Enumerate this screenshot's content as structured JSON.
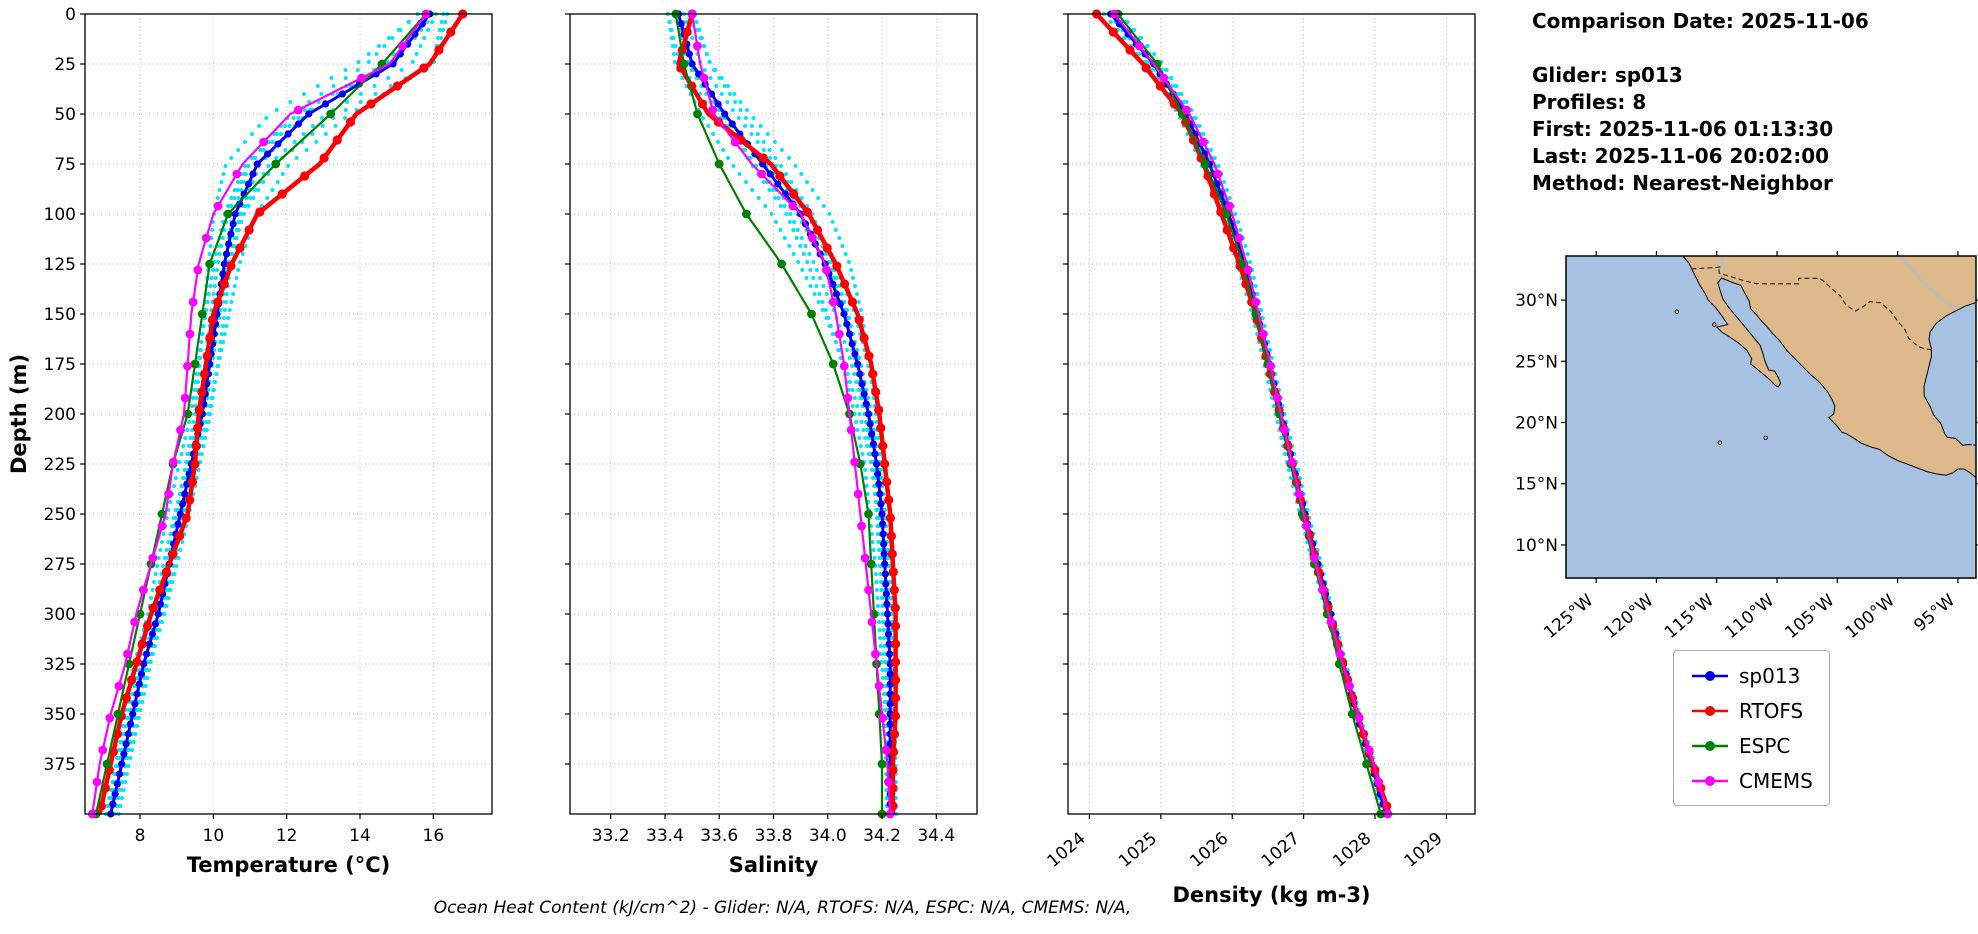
{
  "info_panel": {
    "comparison_date": "Comparison Date: 2025-11-06",
    "glider": "Glider: sp013",
    "profiles": "Profiles: 8",
    "first": "First: 2025-11-06 01:13:30",
    "last": "Last: 2025-11-06 20:02:00",
    "method": "Method: Nearest-Neighbor"
  },
  "footer_text": "Ocean Heat Content (kJ/cm^2) - Glider: N/A,  RTOFS: N/A,  ESPC: N/A,  CMEMS: N/A,",
  "legend": [
    {
      "label": "sp013"
    },
    {
      "label": "RTOFS"
    },
    {
      "label": "ESPC"
    },
    {
      "label": "CMEMS"
    }
  ],
  "colors": {
    "sp013": "#0000ee",
    "RTOFS": "#ff0000",
    "ESPC": "#008000",
    "CMEMS": "#ff00ff",
    "glider_scatter": "#00e5ff",
    "land": "#ddb88a",
    "ocean": "#a6c1e1",
    "river": "#9cc3e6",
    "grid": "#b9b9b9"
  },
  "chart_data": [
    {
      "type": "line",
      "name": "temperature",
      "xlabel": "Temperature (°C)",
      "ylabel": "Depth (m)",
      "xlim": [
        6.5,
        17.6
      ],
      "xticks": [
        8,
        10,
        12,
        14,
        16
      ],
      "xtick_labels": [
        "8",
        "10",
        "12",
        "14",
        "16"
      ],
      "rotate_xticks": false,
      "ylim": [
        0,
        400
      ],
      "yticks": [
        0,
        25,
        50,
        75,
        100,
        125,
        150,
        175,
        200,
        225,
        250,
        275,
        300,
        325,
        350,
        375
      ],
      "depths": [
        0,
        25,
        50,
        75,
        100,
        125,
        150,
        175,
        200,
        225,
        250,
        275,
        300,
        325,
        350,
        375,
        400
      ],
      "series": [
        {
          "name": "sp013",
          "values": [
            15.9,
            14.9,
            12.6,
            11.2,
            10.6,
            10.3,
            10.1,
            9.9,
            9.7,
            9.4,
            9.1,
            8.8,
            8.5,
            8.1,
            7.8,
            7.5,
            7.2
          ]
        },
        {
          "name": "RTOFS",
          "values": [
            16.8,
            15.9,
            13.9,
            12.9,
            11.2,
            10.5,
            10.0,
            9.8,
            9.6,
            9.5,
            9.3,
            8.8,
            8.3,
            7.9,
            7.5,
            7.2,
            6.9
          ]
        },
        {
          "name": "ESPC",
          "values": [
            15.8,
            14.6,
            13.2,
            11.7,
            10.4,
            9.9,
            9.7,
            9.5,
            9.3,
            8.9,
            8.6,
            8.3,
            8.0,
            7.7,
            7.4,
            7.1,
            6.8
          ]
        },
        {
          "name": "CMEMS",
          "values": [
            15.8,
            14.8,
            12.1,
            10.8,
            10.0,
            9.6,
            9.4,
            9.3,
            9.2,
            8.9,
            8.7,
            8.3,
            7.9,
            7.6,
            7.2,
            6.9,
            6.7
          ]
        }
      ],
      "glider_scatter": {
        "profiles": 8,
        "spread": [
          0.5,
          1.3,
          1.2,
          0.9,
          0.6,
          0.45,
          0.4,
          0.35,
          0.3,
          0.3,
          0.3,
          0.28,
          0.25,
          0.25,
          0.22,
          0.2,
          0.2
        ]
      }
    },
    {
      "type": "line",
      "name": "salinity",
      "xlabel": "Salinity",
      "ylabel": "",
      "xlim": [
        33.05,
        34.55
      ],
      "xticks": [
        33.2,
        33.4,
        33.6,
        33.8,
        34.0,
        34.2,
        34.4
      ],
      "xtick_labels": [
        "33.2",
        "33.4",
        "33.6",
        "33.8",
        "34.0",
        "34.2",
        "34.4"
      ],
      "rotate_xticks": false,
      "ylim": [
        0,
        400
      ],
      "yticks": [
        0,
        25,
        50,
        75,
        100,
        125,
        150,
        175,
        200,
        225,
        250,
        275,
        300,
        325,
        350,
        375
      ],
      "depths": [
        0,
        25,
        50,
        75,
        100,
        125,
        150,
        175,
        200,
        225,
        250,
        275,
        300,
        325,
        350,
        375,
        400
      ],
      "series": [
        {
          "name": "sp013",
          "values": [
            33.45,
            33.5,
            33.62,
            33.76,
            33.9,
            33.99,
            34.06,
            34.11,
            34.15,
            34.18,
            34.2,
            34.21,
            34.22,
            34.23,
            34.23,
            34.23,
            34.23
          ]
        },
        {
          "name": "RTOFS",
          "values": [
            33.5,
            33.45,
            33.56,
            33.79,
            33.93,
            34.03,
            34.11,
            34.16,
            34.19,
            34.21,
            34.23,
            34.24,
            34.25,
            34.25,
            34.25,
            34.24,
            34.24
          ]
        },
        {
          "name": "ESPC",
          "values": [
            33.44,
            33.47,
            33.52,
            33.6,
            33.7,
            33.83,
            33.94,
            34.02,
            34.08,
            34.12,
            34.15,
            34.16,
            34.17,
            34.18,
            34.19,
            34.2,
            34.2
          ]
        },
        {
          "name": "CMEMS",
          "values": [
            33.5,
            33.53,
            33.58,
            33.72,
            33.9,
            33.99,
            34.03,
            34.06,
            34.08,
            34.1,
            34.12,
            34.14,
            34.16,
            34.18,
            34.2,
            34.22,
            34.23
          ]
        }
      ],
      "glider_scatter": {
        "profiles": 8,
        "spread": [
          0.06,
          0.08,
          0.1,
          0.12,
          0.11,
          0.1,
          0.08,
          0.06,
          0.05,
          0.04,
          0.04,
          0.03,
          0.03,
          0.03,
          0.02,
          0.02,
          0.02
        ]
      }
    },
    {
      "type": "line",
      "name": "density",
      "xlabel": "Density (kg m-3)",
      "ylabel": "",
      "xlim": [
        1023.7,
        1029.4
      ],
      "xticks": [
        1024,
        1025,
        1026,
        1027,
        1028,
        1029
      ],
      "xtick_labels": [
        "1024",
        "1025",
        "1026",
        "1027",
        "1028",
        "1029"
      ],
      "rotate_xticks": true,
      "ylim": [
        0,
        400
      ],
      "yticks": [
        0,
        25,
        50,
        75,
        100,
        125,
        150,
        175,
        200,
        225,
        250,
        275,
        300,
        325,
        350,
        375
      ],
      "depths": [
        0,
        25,
        50,
        75,
        100,
        125,
        150,
        175,
        200,
        225,
        250,
        275,
        300,
        325,
        350,
        375,
        400
      ],
      "series": [
        {
          "name": "sp013",
          "values": [
            1024.3,
            1024.9,
            1025.35,
            1025.68,
            1025.95,
            1026.17,
            1026.35,
            1026.52,
            1026.68,
            1026.85,
            1027.02,
            1027.2,
            1027.38,
            1027.56,
            1027.74,
            1027.95,
            1028.15
          ]
        },
        {
          "name": "RTOFS",
          "values": [
            1024.1,
            1024.75,
            1025.3,
            1025.6,
            1025.85,
            1026.1,
            1026.33,
            1026.5,
            1026.67,
            1026.84,
            1027.0,
            1027.18,
            1027.36,
            1027.55,
            1027.75,
            1027.97,
            1028.2
          ]
        },
        {
          "name": "ESPC",
          "values": [
            1024.4,
            1024.95,
            1025.3,
            1025.62,
            1025.92,
            1026.15,
            1026.33,
            1026.5,
            1026.66,
            1026.82,
            1026.98,
            1027.15,
            1027.33,
            1027.5,
            1027.68,
            1027.88,
            1028.08
          ]
        },
        {
          "name": "CMEMS",
          "values": [
            1024.35,
            1024.9,
            1025.4,
            1025.75,
            1026.0,
            1026.2,
            1026.37,
            1026.53,
            1026.68,
            1026.84,
            1027.0,
            1027.17,
            1027.35,
            1027.55,
            1027.76,
            1027.98,
            1028.18
          ]
        }
      ],
      "glider_scatter": {
        "profiles": 8,
        "spread": [
          0.15,
          0.15,
          0.12,
          0.12,
          0.1,
          0.1,
          0.08,
          0.08,
          0.07,
          0.07,
          0.06,
          0.06,
          0.05,
          0.05,
          0.05,
          0.05,
          0.05
        ]
      }
    },
    {
      "type": "map",
      "name": "location-map",
      "extent": {
        "lon": [
          -127.5,
          -93.5
        ],
        "lat": [
          7.3,
          33.6
        ]
      },
      "lon_ticks": [
        -125,
        -120,
        -115,
        -110,
        -105,
        -100,
        -95
      ],
      "lon_tick_labels": [
        "125°W",
        "120°W",
        "115°W",
        "110°W",
        "105°W",
        "100°W",
        "95°W"
      ],
      "lat_ticks": [
        10,
        15,
        20,
        25,
        30
      ],
      "lat_tick_labels": [
        "10°N",
        "15°N",
        "20°N",
        "25°N",
        "30°N"
      ],
      "land": [
        [
          -117.8,
          33.6
        ],
        [
          -117.3,
          33.0
        ],
        [
          -117.1,
          32.6
        ],
        [
          -116.8,
          32.0
        ],
        [
          -116.4,
          31.2
        ],
        [
          -116.0,
          30.6
        ],
        [
          -115.7,
          30.0
        ],
        [
          -115.1,
          29.4
        ],
        [
          -114.5,
          28.6
        ],
        [
          -114.1,
          28.0
        ],
        [
          -114.5,
          27.9
        ],
        [
          -115.0,
          27.8
        ],
        [
          -114.6,
          27.4
        ],
        [
          -113.8,
          26.9
        ],
        [
          -113.2,
          26.5
        ],
        [
          -112.5,
          25.9
        ],
        [
          -112.1,
          25.2
        ],
        [
          -112.2,
          24.8
        ],
        [
          -111.7,
          24.4
        ],
        [
          -111.2,
          24.0
        ],
        [
          -110.6,
          23.5
        ],
        [
          -110.1,
          23.0
        ],
        [
          -109.9,
          22.9
        ],
        [
          -109.7,
          23.2
        ],
        [
          -109.9,
          23.7
        ],
        [
          -110.2,
          24.2
        ],
        [
          -110.7,
          24.3
        ],
        [
          -111.0,
          25.0
        ],
        [
          -111.2,
          25.7
        ],
        [
          -111.4,
          26.3
        ],
        [
          -111.9,
          26.9
        ],
        [
          -112.4,
          27.5
        ],
        [
          -112.9,
          28.1
        ],
        [
          -113.5,
          28.8
        ],
        [
          -114.0,
          29.4
        ],
        [
          -114.5,
          30.1
        ],
        [
          -114.7,
          30.7
        ],
        [
          -114.9,
          31.4
        ],
        [
          -114.6,
          31.8
        ],
        [
          -114.1,
          31.6
        ],
        [
          -113.6,
          31.4
        ],
        [
          -113.0,
          31.2
        ],
        [
          -112.7,
          30.6
        ],
        [
          -112.3,
          29.9
        ],
        [
          -112.2,
          29.3
        ],
        [
          -111.7,
          28.8
        ],
        [
          -111.3,
          28.3
        ],
        [
          -110.9,
          27.9
        ],
        [
          -110.3,
          27.2
        ],
        [
          -109.8,
          26.7
        ],
        [
          -109.2,
          25.9
        ],
        [
          -108.5,
          25.2
        ],
        [
          -107.9,
          24.6
        ],
        [
          -107.2,
          23.9
        ],
        [
          -106.6,
          23.4
        ],
        [
          -106.4,
          23.2
        ],
        [
          -105.8,
          22.5
        ],
        [
          -105.4,
          21.8
        ],
        [
          -105.2,
          21.3
        ],
        [
          -105.3,
          20.7
        ],
        [
          -105.7,
          20.4
        ],
        [
          -105.1,
          19.8
        ],
        [
          -104.6,
          19.2
        ],
        [
          -104.3,
          19.1
        ],
        [
          -103.6,
          18.7
        ],
        [
          -103.0,
          18.3
        ],
        [
          -102.2,
          18.0
        ],
        [
          -101.5,
          17.8
        ],
        [
          -100.8,
          17.3
        ],
        [
          -100.0,
          16.9
        ],
        [
          -99.2,
          16.6
        ],
        [
          -98.4,
          16.3
        ],
        [
          -97.6,
          16.0
        ],
        [
          -96.8,
          15.8
        ],
        [
          -96.0,
          15.7
        ],
        [
          -95.4,
          15.9
        ],
        [
          -95.0,
          16.2
        ],
        [
          -94.5,
          16.2
        ],
        [
          -94.0,
          15.9
        ],
        [
          -93.5,
          15.5
        ],
        [
          -93.5,
          18.15
        ],
        [
          -94.1,
          18.2
        ],
        [
          -94.6,
          18.15
        ],
        [
          -95.2,
          18.7
        ],
        [
          -95.9,
          18.8
        ],
        [
          -96.1,
          19.1
        ],
        [
          -96.4,
          19.9
        ],
        [
          -97.0,
          20.6
        ],
        [
          -97.3,
          21.3
        ],
        [
          -97.8,
          22.2
        ],
        [
          -97.8,
          23.0
        ],
        [
          -97.6,
          23.8
        ],
        [
          -97.4,
          24.6
        ],
        [
          -97.2,
          25.4
        ],
        [
          -97.2,
          26.0
        ],
        [
          -97.4,
          26.8
        ],
        [
          -97.3,
          27.4
        ],
        [
          -96.8,
          28.1
        ],
        [
          -96.0,
          28.7
        ],
        [
          -95.2,
          29.1
        ],
        [
          -94.4,
          29.5
        ],
        [
          -93.8,
          29.7
        ],
        [
          -93.5,
          29.8
        ],
        [
          -93.5,
          33.6
        ]
      ],
      "border": [
        [
          -117.1,
          32.55
        ],
        [
          -116.1,
          32.6
        ],
        [
          -115.0,
          32.66
        ],
        [
          -114.7,
          32.72
        ],
        [
          -114.8,
          32.5
        ],
        [
          -114.8,
          32.2
        ],
        [
          -113.8,
          31.9
        ],
        [
          -112.8,
          31.6
        ],
        [
          -111.8,
          31.35
        ],
        [
          -111.0,
          31.33
        ],
        [
          -109.5,
          31.33
        ],
        [
          -108.2,
          31.33
        ],
        [
          -108.2,
          31.78
        ],
        [
          -106.5,
          31.78
        ],
        [
          -106.2,
          31.6
        ],
        [
          -105.3,
          30.8
        ],
        [
          -104.7,
          30.3
        ],
        [
          -104.3,
          29.6
        ],
        [
          -103.5,
          29.1
        ],
        [
          -102.8,
          29.5
        ],
        [
          -102.3,
          29.88
        ],
        [
          -101.4,
          29.78
        ],
        [
          -100.6,
          29.1
        ],
        [
          -100.0,
          28.3
        ],
        [
          -99.4,
          27.6
        ],
        [
          -99.1,
          26.9
        ],
        [
          -98.3,
          26.2
        ],
        [
          -97.7,
          26.0
        ],
        [
          -97.15,
          25.95
        ]
      ],
      "rivers": [
        [
          [
            -114.4,
            33.6
          ],
          [
            -114.6,
            33.0
          ],
          [
            -114.5,
            32.8
          ],
          [
            -114.7,
            32.72
          ],
          [
            -114.8,
            32.4
          ],
          [
            -114.7,
            31.9
          ]
        ],
        [
          [
            -99.8,
            33.6
          ],
          [
            -98.9,
            32.6
          ],
          [
            -97.8,
            31.4
          ],
          [
            -96.6,
            30.3
          ],
          [
            -95.6,
            29.6
          ],
          [
            -95.0,
            29.3
          ]
        ],
        [
          [
            -93.8,
            18.2
          ],
          [
            -93.6,
            17.4
          ],
          [
            -93.5,
            17.0
          ]
        ]
      ],
      "islands": [
        [
          -118.3,
          29.05
        ],
        [
          -115.2,
          28.0
        ],
        [
          -110.95,
          18.75
        ],
        [
          -114.75,
          18.35
        ]
      ]
    }
  ]
}
